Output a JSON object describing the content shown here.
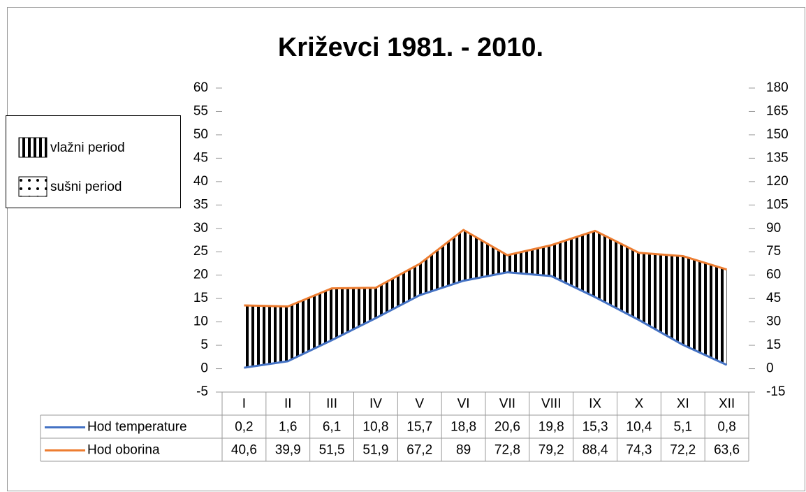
{
  "chart_data": {
    "type": "line",
    "title": "Križevci 1981. - 2010.",
    "categories": [
      "I",
      "II",
      "III",
      "IV",
      "V",
      "VI",
      "VII",
      "VIII",
      "IX",
      "X",
      "XI",
      "XII"
    ],
    "series": [
      {
        "name": "Hod temperature",
        "color": "#4472c4",
        "axis": "y",
        "values": [
          0.2,
          1.6,
          6.1,
          10.8,
          15.7,
          18.8,
          20.6,
          19.8,
          15.3,
          10.4,
          5.1,
          0.8
        ],
        "value_labels": [
          "0,2",
          "1,6",
          "6,1",
          "10,8",
          "15,7",
          "18,8",
          "20,6",
          "19,8",
          "15,3",
          "10,4",
          "5,1",
          "0,8"
        ]
      },
      {
        "name": "Hod oborina",
        "color": "#ed7d31",
        "axis": "y2",
        "values": [
          40.6,
          39.9,
          51.5,
          51.9,
          67.2,
          89,
          72.8,
          79.2,
          88.4,
          74.3,
          72.2,
          63.6
        ],
        "value_labels": [
          "40,6",
          "39,9",
          "51,5",
          "51,9",
          "67,2",
          "89",
          "72,8",
          "79,2",
          "88,4",
          "74,3",
          "72,2",
          "63,6"
        ]
      }
    ],
    "ylim": [
      -5,
      60
    ],
    "yticks": [
      -5,
      0,
      5,
      10,
      15,
      20,
      25,
      30,
      35,
      40,
      45,
      50,
      55,
      60
    ],
    "y2lim": [
      -15,
      180
    ],
    "y2ticks": [
      -15,
      0,
      15,
      30,
      45,
      60,
      75,
      90,
      105,
      120,
      135,
      150,
      165,
      180
    ],
    "period_legend": [
      "vlažni period",
      "sušni period"
    ]
  }
}
